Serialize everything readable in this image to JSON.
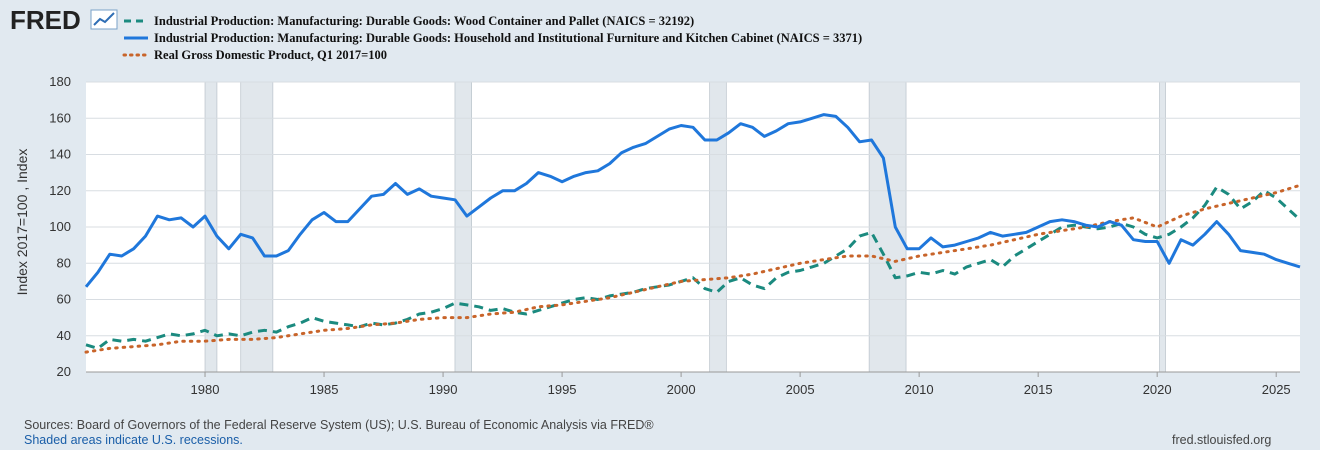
{
  "brand": {
    "name": "FRED",
    "icon": "line-chart-icon"
  },
  "footer": {
    "sources": "Sources: Board of Governors of the Federal Reserve System (US); U.S. Bureau of Economic Analysis via FRED®",
    "recessions": "Shaded areas indicate U.S. recessions.",
    "site": "fred.stlouisfed.org"
  },
  "colors": {
    "wood": "#1b8a7f",
    "furniture": "#1f77db",
    "gdp": "#c8642a",
    "recession": "#e1e7ec",
    "plot_bg": "#ffffff",
    "page_bg": "#e1e9f0"
  },
  "chart_data": {
    "type": "line",
    "ylabel": "Index 2017=100 , Index",
    "xlim": [
      1975.0,
      2026.0
    ],
    "ylim": [
      20,
      180
    ],
    "yticks": [
      20,
      40,
      60,
      80,
      100,
      120,
      140,
      160,
      180
    ],
    "xticks": [
      1980,
      1985,
      1990,
      1995,
      2000,
      2005,
      2010,
      2015,
      2020,
      2025
    ],
    "grid": true,
    "legend": "top-left",
    "recessions": [
      [
        1980.0,
        1980.5
      ],
      [
        1981.5,
        1982.85
      ],
      [
        1990.5,
        1991.2
      ],
      [
        2001.2,
        2001.9
      ],
      [
        2007.9,
        2009.45
      ],
      [
        2020.1,
        2020.35
      ]
    ],
    "series": [
      {
        "name": "Industrial Production: Manufacturing: Durable Goods: Wood Container and Pallet (NAICS = 32192)",
        "style": "dash",
        "x": [
          1975,
          1975.5,
          1976,
          1976.5,
          1977,
          1977.5,
          1978,
          1978.5,
          1979,
          1979.5,
          1980,
          1980.5,
          1981,
          1981.5,
          1982,
          1982.5,
          1983,
          1983.5,
          1984,
          1984.5,
          1985,
          1985.5,
          1986,
          1986.5,
          1987,
          1987.5,
          1988,
          1988.5,
          1989,
          1989.5,
          1990,
          1990.5,
          1991,
          1991.5,
          1992,
          1992.5,
          1993,
          1993.5,
          1994,
          1994.5,
          1995,
          1995.5,
          1996,
          1996.5,
          1997,
          1997.5,
          1998,
          1998.5,
          1999,
          1999.5,
          2000,
          2000.5,
          2001,
          2001.5,
          2002,
          2002.5,
          2003,
          2003.5,
          2004,
          2004.5,
          2005,
          2005.5,
          2006,
          2006.5,
          2007,
          2007.5,
          2008,
          2008.5,
          2009,
          2009.5,
          2010,
          2010.5,
          2011,
          2011.5,
          2012,
          2012.5,
          2013,
          2013.5,
          2014,
          2014.5,
          2015,
          2015.5,
          2016,
          2016.5,
          2017,
          2017.5,
          2018,
          2018.5,
          2019,
          2019.5,
          2020,
          2020.5,
          2021,
          2021.5,
          2022,
          2022.5,
          2023,
          2023.5,
          2024,
          2024.5,
          2025,
          2025.5,
          2026
        ],
        "y": [
          35,
          33,
          38,
          37,
          38,
          37,
          39,
          41,
          40,
          41,
          43,
          40,
          41,
          40,
          42,
          43,
          42,
          45,
          47,
          50,
          48,
          47,
          46,
          45,
          47,
          46,
          47,
          49,
          52,
          53,
          55,
          58,
          57,
          56,
          54,
          55,
          53,
          52,
          54,
          56,
          58,
          60,
          61,
          60,
          62,
          63,
          64,
          66,
          67,
          68,
          70,
          72,
          66,
          64,
          70,
          72,
          68,
          66,
          72,
          75,
          76,
          78,
          80,
          84,
          88,
          95,
          97,
          85,
          72,
          73,
          75,
          74,
          76,
          74,
          78,
          80,
          82,
          78,
          84,
          88,
          92,
          96,
          100,
          101,
          100,
          99,
          100,
          102,
          100,
          96,
          94,
          96,
          100,
          105,
          112,
          122,
          118,
          110,
          114,
          120,
          116,
          110,
          104
        ]
      },
      {
        "name": "Industrial Production: Manufacturing: Durable Goods: Household and Institutional Furniture and Kitchen Cabinet (NAICS = 3371)",
        "style": "solid",
        "x": [
          1975,
          1975.5,
          1976,
          1976.5,
          1977,
          1977.5,
          1978,
          1978.5,
          1979,
          1979.5,
          1980,
          1980.5,
          1981,
          1981.5,
          1982,
          1982.5,
          1983,
          1983.5,
          1984,
          1984.5,
          1985,
          1985.5,
          1986,
          1986.5,
          1987,
          1987.5,
          1988,
          1988.5,
          1989,
          1989.5,
          1990,
          1990.5,
          1991,
          1991.5,
          1992,
          1992.5,
          1993,
          1993.5,
          1994,
          1994.5,
          1995,
          1995.5,
          1996,
          1996.5,
          1997,
          1997.5,
          1998,
          1998.5,
          1999,
          1999.5,
          2000,
          2000.5,
          2001,
          2001.5,
          2002,
          2002.5,
          2003,
          2003.5,
          2004,
          2004.5,
          2005,
          2005.5,
          2006,
          2006.5,
          2007,
          2007.5,
          2008,
          2008.5,
          2009,
          2009.5,
          2010,
          2010.5,
          2011,
          2011.5,
          2012,
          2012.5,
          2013,
          2013.5,
          2014,
          2014.5,
          2015,
          2015.5,
          2016,
          2016.5,
          2017,
          2017.5,
          2018,
          2018.5,
          2019,
          2019.5,
          2020,
          2020.5,
          2021,
          2021.5,
          2022,
          2022.5,
          2023,
          2023.5,
          2024,
          2024.5,
          2025,
          2025.5,
          2026
        ],
        "y": [
          67,
          75,
          85,
          84,
          88,
          95,
          106,
          104,
          105,
          100,
          106,
          95,
          88,
          96,
          94,
          84,
          84,
          87,
          96,
          104,
          108,
          103,
          103,
          110,
          117,
          118,
          124,
          118,
          121,
          117,
          116,
          115,
          106,
          111,
          116,
          120,
          120,
          124,
          130,
          128,
          125,
          128,
          130,
          131,
          135,
          141,
          144,
          146,
          150,
          154,
          156,
          155,
          148,
          148,
          152,
          157,
          155,
          150,
          153,
          157,
          158,
          160,
          162,
          161,
          155,
          147,
          148,
          138,
          100,
          88,
          88,
          94,
          89,
          90,
          92,
          94,
          97,
          95,
          96,
          97,
          100,
          103,
          104,
          103,
          101,
          100,
          103,
          101,
          93,
          92,
          92,
          80,
          93,
          90,
          96,
          103,
          96,
          87,
          86,
          85,
          82,
          80,
          78
        ]
      },
      {
        "name": "Real Gross Domestic Product, Q1 2017=100",
        "style": "dot",
        "x": [
          1975,
          1976,
          1977,
          1978,
          1979,
          1980,
          1981,
          1982,
          1983,
          1984,
          1985,
          1986,
          1987,
          1988,
          1989,
          1990,
          1991,
          1992,
          1993,
          1994,
          1995,
          1996,
          1997,
          1998,
          1999,
          2000,
          2001,
          2002,
          2003,
          2004,
          2005,
          2006,
          2007,
          2008,
          2009,
          2010,
          2011,
          2012,
          2013,
          2014,
          2015,
          2016,
          2017,
          2018,
          2019,
          2020,
          2021,
          2022,
          2023,
          2024,
          2025,
          2026
        ],
        "y": [
          31,
          33,
          34,
          35,
          37,
          37,
          38,
          38,
          39,
          41,
          43,
          44,
          46,
          47,
          49,
          50,
          50,
          52,
          53,
          56,
          57,
          59,
          61,
          64,
          67,
          70,
          71,
          72,
          74,
          77,
          80,
          82,
          84,
          84,
          81,
          84,
          86,
          88,
          90,
          93,
          96,
          98,
          100,
          103,
          105,
          100,
          106,
          110,
          113,
          116,
          119,
          123
        ]
      }
    ]
  }
}
